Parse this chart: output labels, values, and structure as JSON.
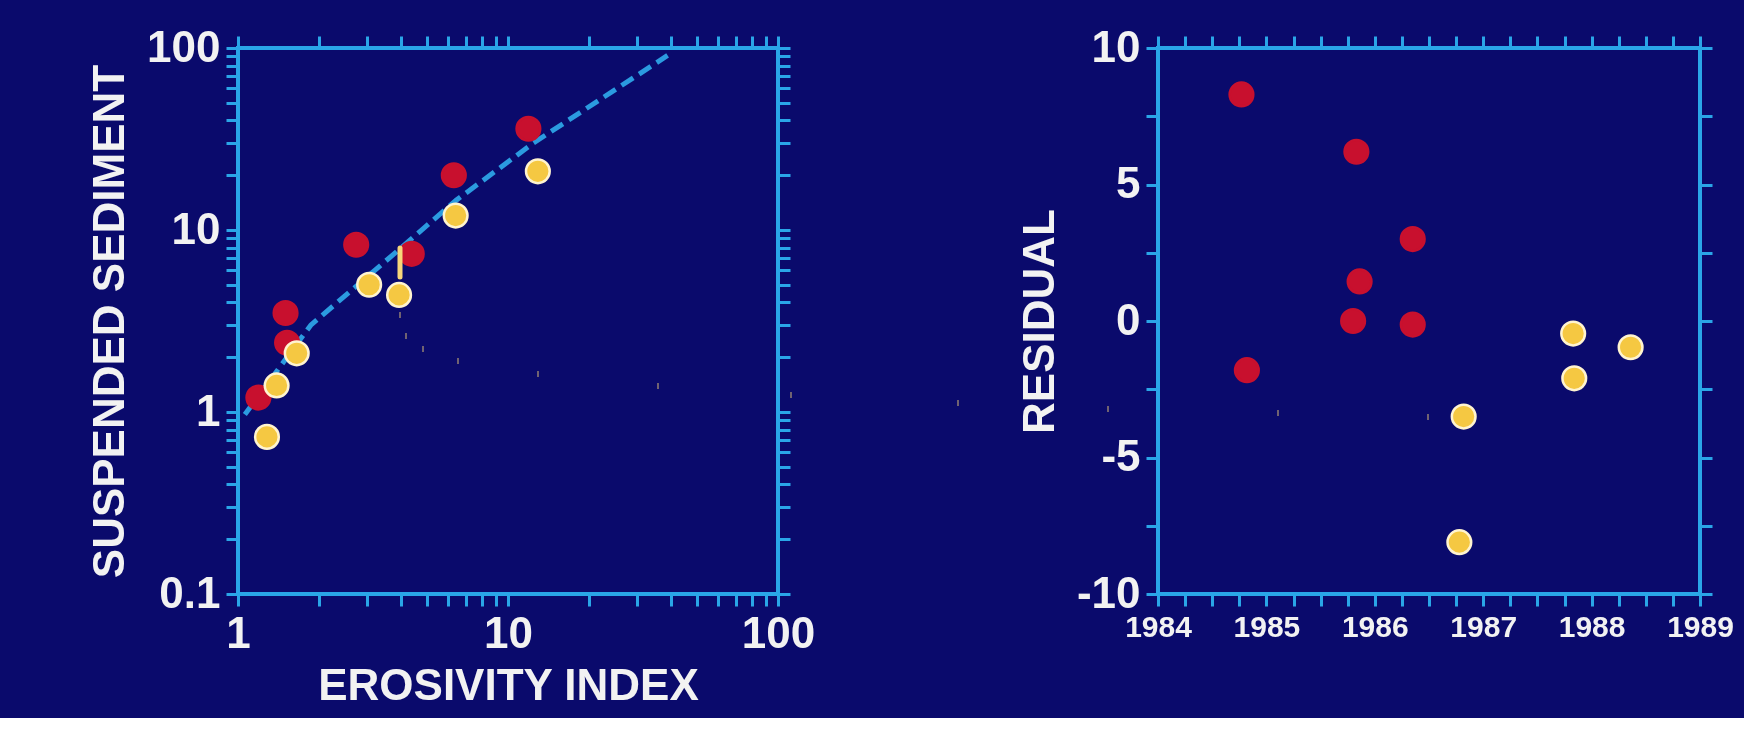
{
  "chart_data": [
    {
      "type": "scatter",
      "xlabel": "EROSIVITY INDEX",
      "ylabel": "SUSPENDED SEDIMENT",
      "log": "xy",
      "grid": false,
      "xlim": [
        1,
        100
      ],
      "ylim": [
        0.1,
        100
      ],
      "xticks": [
        1,
        {
          "value": 2,
          "label": null
        },
        {
          "value": 3,
          "label": null
        },
        {
          "value": 4,
          "label": null
        },
        {
          "value": 5,
          "label": null
        },
        {
          "value": 6,
          "label": null
        },
        {
          "value": 7,
          "label": null
        },
        {
          "value": 8,
          "label": null
        },
        {
          "value": 9,
          "label": null
        },
        10,
        {
          "value": 20,
          "label": null
        },
        {
          "value": 30,
          "label": null
        },
        {
          "value": 40,
          "label": null
        },
        {
          "value": 50,
          "label": null
        },
        {
          "value": 60,
          "label": null
        },
        {
          "value": 70,
          "label": null
        },
        {
          "value": 80,
          "label": null
        },
        {
          "value": 90,
          "label": null
        },
        100
      ],
      "yticks": [
        0.1,
        {
          "value": 0.2,
          "label": null
        },
        {
          "value": 0.3,
          "label": null
        },
        {
          "value": 0.4,
          "label": null
        },
        {
          "value": 0.5,
          "label": null
        },
        {
          "value": 0.6,
          "label": null
        },
        {
          "value": 0.7,
          "label": null
        },
        {
          "value": 0.8,
          "label": null
        },
        {
          "value": 0.9,
          "label": null
        },
        1,
        {
          "value": 2,
          "label": null
        },
        {
          "value": 3,
          "label": null
        },
        {
          "value": 4,
          "label": null
        },
        {
          "value": 5,
          "label": null
        },
        {
          "value": 6,
          "label": null
        },
        {
          "value": 7,
          "label": null
        },
        {
          "value": 8,
          "label": null
        },
        {
          "value": 9,
          "label": null
        },
        10,
        {
          "value": 20,
          "label": null
        },
        {
          "value": 30,
          "label": null
        },
        {
          "value": 40,
          "label": null
        },
        {
          "value": 50,
          "label": null
        },
        {
          "value": 60,
          "label": null
        },
        {
          "value": 70,
          "label": null
        },
        {
          "value": 80,
          "label": null
        },
        {
          "value": 90,
          "label": null
        },
        100
      ],
      "series": [
        {
          "type": "line",
          "marker": "none",
          "line_style": "dashed",
          "color": "#2b9be0",
          "x": [
            1.06,
            1.86,
            4.3,
            6.4,
            12.4,
            39
          ],
          "values": [
            0.97,
            3.0,
            8.7,
            14.5,
            30,
            91
          ]
        },
        {
          "marker": "circle",
          "color": "#c8102e",
          "x": [
            1.19,
            1.5,
            1.52,
            2.74,
            4.4,
            6.3,
            11.9
          ],
          "values": [
            1.2,
            3.5,
            2.4,
            8.3,
            7.4,
            20,
            36
          ]
        },
        {
          "marker": "circle",
          "color": "#f5c842",
          "x": [
            1.28,
            1.39,
            1.65,
            3.06,
            3.95,
            6.4,
            12.9
          ],
          "values": [
            0.73,
            1.4,
            2.1,
            5.0,
            4.4,
            12,
            21
          ]
        }
      ]
    },
    {
      "type": "scatter",
      "ylabel": "RESIDUAL",
      "grid": false,
      "xlim": [
        1984,
        1989
      ],
      "ylim": [
        -10,
        10
      ],
      "xticks": [
        1984,
        {
          "value": 1984.25,
          "label": null
        },
        {
          "value": 1984.5,
          "label": null
        },
        {
          "value": 1984.75,
          "label": null
        },
        1985,
        {
          "value": 1985.25,
          "label": null
        },
        {
          "value": 1985.5,
          "label": null
        },
        {
          "value": 1985.75,
          "label": null
        },
        1986,
        {
          "value": 1986.25,
          "label": null
        },
        {
          "value": 1986.5,
          "label": null
        },
        {
          "value": 1986.75,
          "label": null
        },
        1987,
        {
          "value": 1987.25,
          "label": null
        },
        {
          "value": 1987.5,
          "label": null
        },
        {
          "value": 1987.75,
          "label": null
        },
        1988,
        {
          "value": 1988.25,
          "label": null
        },
        {
          "value": 1988.5,
          "label": null
        },
        {
          "value": 1988.75,
          "label": null
        },
        1989
      ],
      "yticks": [
        -10,
        {
          "value": -7.5,
          "label": null
        },
        -5,
        {
          "value": -2.5,
          "label": null
        },
        0,
        {
          "value": 2.5,
          "label": null
        },
        5,
        {
          "value": 7.5,
          "label": null
        },
        10
      ],
      "series": [
        {
          "marker": "circle",
          "color": "#c8102e",
          "x": [
            1984.77,
            1985.83,
            1986.35,
            1985.86,
            1985.8,
            1986.35,
            1984.82
          ],
          "values": [
            8.3,
            6.2,
            3.0,
            1.45,
            0.0,
            -0.13,
            -1.8
          ]
        },
        {
          "marker": "circle",
          "color": "#f5c842",
          "x": [
            1986.82,
            1986.78,
            1987.83,
            1988.36,
            1987.84
          ],
          "values": [
            -3.5,
            -8.1,
            -0.46,
            -0.96,
            -2.1
          ]
        }
      ]
    }
  ]
}
